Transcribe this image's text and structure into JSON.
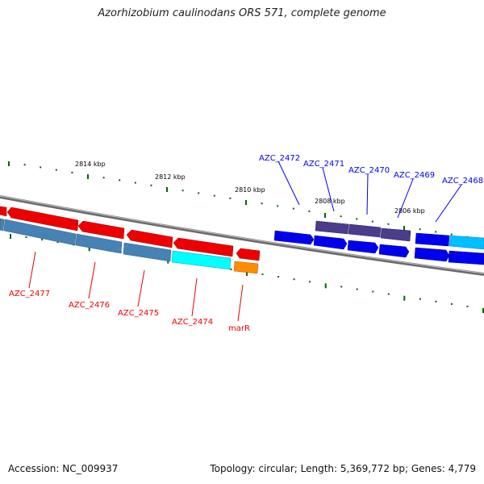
{
  "title": "Azorhizobium caulinodans ORS 571, complete genome",
  "accession": "Accession: NC_009937",
  "summary": "Topology: circular; Length: 5,369,772 bp; Genes: 4,779",
  "colors": {
    "forward_gene": "#0000ee",
    "reverse_gene": "#ee0000",
    "cds_blue": "#4682b4",
    "cds_cyan": "#00ffff",
    "cds_purple": "#4b3c8c",
    "rna_orange": "#ff8c00",
    "tick_green": "#006400",
    "backbone": "#808080"
  },
  "ticks": [
    "2814 kbp",
    "2812 kbp",
    "2810 kbp",
    "2808 kbp",
    "2806 kbp"
  ],
  "genes_forward": [
    "AZC_2472",
    "AZC_2471",
    "AZC_2470",
    "AZC_2469",
    "AZC_2468"
  ],
  "genes_reverse": [
    "AZC_2477",
    "AZC_2476",
    "AZC_2475",
    "AZC_2474",
    "marR"
  ]
}
